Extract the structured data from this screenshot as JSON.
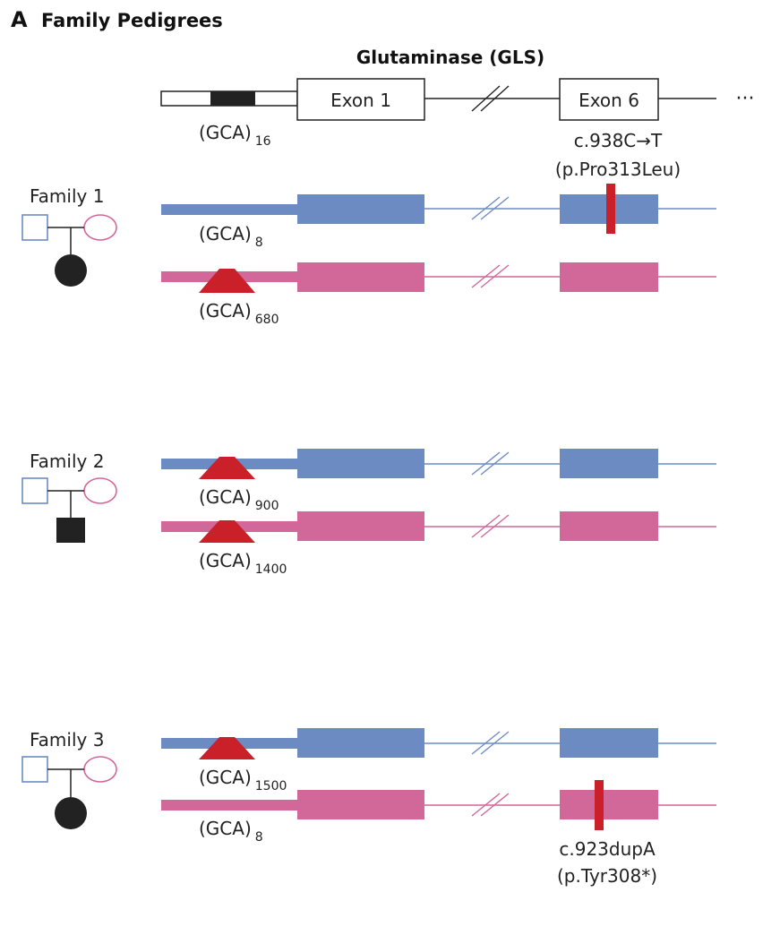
{
  "panel": {
    "letter": "A",
    "title": "Family Pedigrees"
  },
  "gene": {
    "title": "Glutaminase (GLS)",
    "exon1": "Exon 1",
    "exon6": "Exon 6",
    "ellipsis": "···",
    "repeat_base": "(GCA)",
    "repeat_count": "16"
  },
  "families": [
    {
      "label": "Family 1",
      "child_shape": "circle",
      "paternal": {
        "repeat_count": "8",
        "expansion": false,
        "mutation": "c.938C→T",
        "protein": "(p.Pro313Leu)",
        "mutation_position": "top"
      },
      "maternal": {
        "repeat_count": "680",
        "expansion": true,
        "mutation": "",
        "protein": ""
      }
    },
    {
      "label": "Family 2",
      "child_shape": "square",
      "paternal": {
        "repeat_count": "900",
        "expansion": true,
        "mutation": "",
        "protein": ""
      },
      "maternal": {
        "repeat_count": "1400",
        "expansion": true,
        "mutation": "",
        "protein": ""
      }
    },
    {
      "label": "Family 3",
      "child_shape": "circle",
      "paternal": {
        "repeat_count": "1500",
        "expansion": true,
        "mutation": "",
        "protein": ""
      },
      "maternal": {
        "repeat_count": "8",
        "expansion": false,
        "mutation": "c.923dupA",
        "protein": "(p.Tyr308*)",
        "mutation_position": "bottom"
      }
    }
  ],
  "colors": {
    "paternal": "#6d8bc3",
    "maternal": "#d2679a",
    "expansion": "#c9202a",
    "affected": "#222222",
    "outline": "#222222"
  }
}
